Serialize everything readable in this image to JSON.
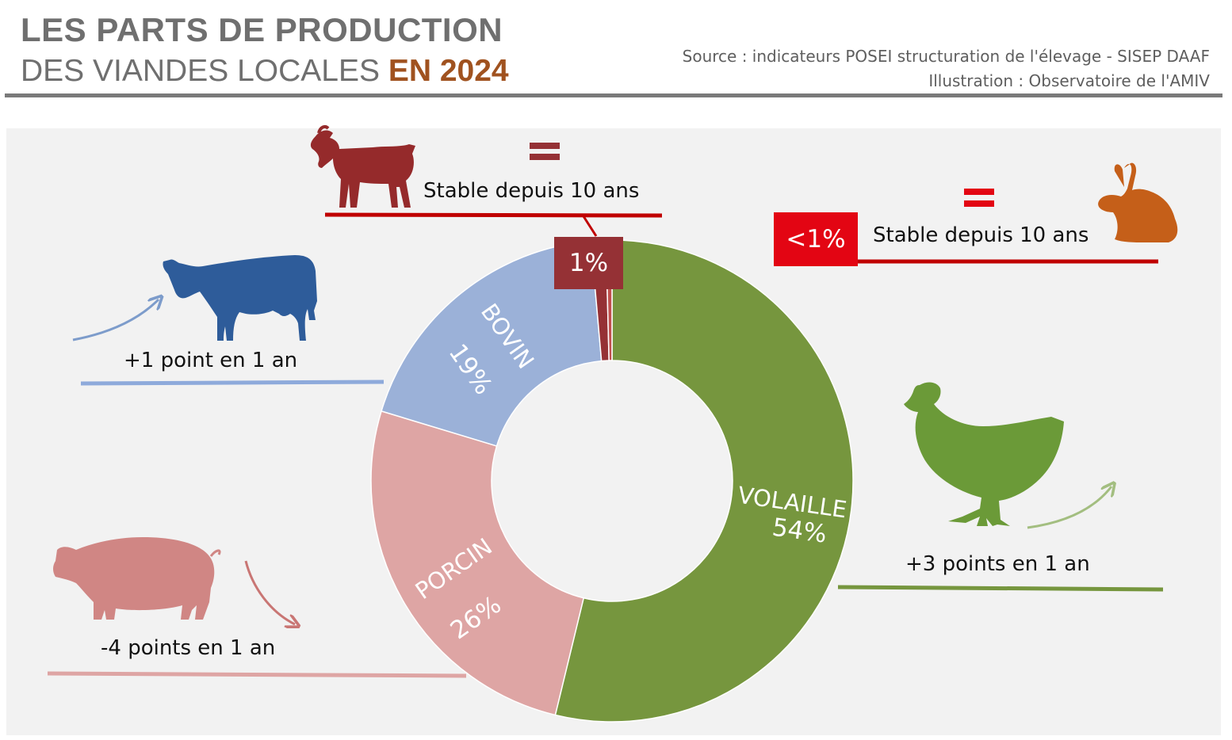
{
  "header": {
    "title_line1": "LES PARTS DE PRODUCTION",
    "title_line2": "DES VIANDES LOCALES",
    "title_year": "EN 2024",
    "source": "Source : indicateurs POSEI structuration de l'élevage - SISEP DAAF",
    "illustration": "Illustration : Observatoire de l'AMIV"
  },
  "colors": {
    "volaille": "#76963e",
    "porcin": "#dea5a4",
    "bovin": "#9bb1d8",
    "caprin": "#953135",
    "lapin": "#c0504d",
    "badge_lapin": "#e30513",
    "goat_icon": "#952a2b",
    "rabbit_icon": "#c55f19",
    "cow_icon": "#2e5c9a",
    "pig_icon": "#d08684",
    "chicken_icon": "#6b9a38",
    "accent_year": "#a0521f"
  },
  "chart_data": {
    "type": "pie",
    "variant": "donut",
    "title": "",
    "unit": "%",
    "slices": [
      {
        "name": "VOLAILLE",
        "label": "VOLAILLE",
        "value": 54,
        "value_label": "54%"
      },
      {
        "name": "PORCIN",
        "label": "PORCIN",
        "value": 26,
        "value_label": "26%"
      },
      {
        "name": "BOVIN",
        "label": "BOVIN",
        "value": 19,
        "value_label": "19%"
      },
      {
        "name": "CAPRIN",
        "label": "",
        "value": 1,
        "value_label": "1%"
      },
      {
        "name": "LAPIN",
        "label": "",
        "value": 0.4,
        "value_label": "<1%"
      }
    ]
  },
  "annotations": {
    "bovin": {
      "text": "+1 point en 1 an",
      "trend": "up",
      "icon": "cow-icon"
    },
    "porcin": {
      "text": "-4 points en 1 an",
      "trend": "down",
      "icon": "pig-icon"
    },
    "volaille": {
      "text": "+3 points en 1 an",
      "trend": "up",
      "icon": "chicken-icon"
    },
    "caprin": {
      "text": "Stable depuis 10 ans",
      "trend": "stable",
      "icon": "goat-icon",
      "badge": "1%"
    },
    "lapin": {
      "text": "Stable depuis 10 ans",
      "trend": "stable",
      "icon": "rabbit-icon",
      "badge": "<1%"
    }
  }
}
